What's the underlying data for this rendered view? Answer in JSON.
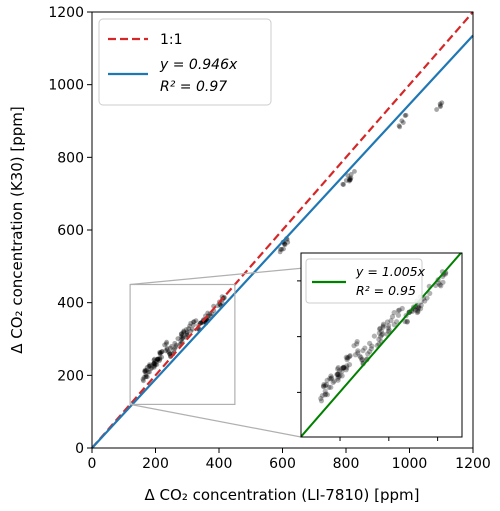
{
  "chart_data": {
    "type": "scatter",
    "xlabel": "Δ CO₂ concentration (LI-7810) [ppm]",
    "ylabel": "Δ CO₂ concentration (K30) [ppm]",
    "xlim": [
      0,
      1200
    ],
    "ylim": [
      0,
      1200
    ],
    "xticks": [
      "0",
      "200",
      "400",
      "600",
      "800",
      "1000",
      "1200"
    ],
    "yticks": [
      "0",
      "200",
      "400",
      "600",
      "800",
      "1000",
      "1200"
    ],
    "grid": false,
    "legend_position": "top-left",
    "series": [
      {
        "name": "1:1",
        "kind": "line",
        "slope": 1.0,
        "color": "#d62728",
        "dash": true
      },
      {
        "name": "y = 0.946x",
        "name2": "R² = 0.97",
        "kind": "line",
        "slope": 0.946,
        "color": "#1f77b4"
      },
      {
        "kind": "points",
        "color": "#000000",
        "clusters": [
          {
            "x0": 160,
            "x1": 240,
            "a": 1.14,
            "b": 10,
            "jitter": 14,
            "n": 55
          },
          {
            "x0": 240,
            "x1": 330,
            "a": 1.05,
            "b": 5,
            "jitter": 14,
            "n": 45
          },
          {
            "x0": 330,
            "x1": 420,
            "a": 0.99,
            "b": 0,
            "jitter": 12,
            "n": 40
          },
          {
            "x0": 590,
            "x1": 620,
            "a": 0.9,
            "b": 15,
            "jitter": 12,
            "n": 12
          },
          {
            "x0": 790,
            "x1": 835,
            "a": 0.9,
            "b": 15,
            "jitter": 10,
            "n": 12
          },
          {
            "x0": 965,
            "x1": 990,
            "a": 0.92,
            "b": 0,
            "jitter": 8,
            "n": 6
          },
          {
            "x0": 1085,
            "x1": 1105,
            "a": 0.86,
            "b": 0,
            "jitter": 5,
            "n": 5
          }
        ]
      }
    ],
    "inset": {
      "xlim": [
        120,
        450
      ],
      "ylim": [
        120,
        450
      ],
      "legend_position": "top-left",
      "series": [
        {
          "name": "y = 1.005x",
          "name2": "R² = 0.95",
          "kind": "line",
          "slope": 1.005,
          "color": "#008000"
        }
      ]
    }
  }
}
